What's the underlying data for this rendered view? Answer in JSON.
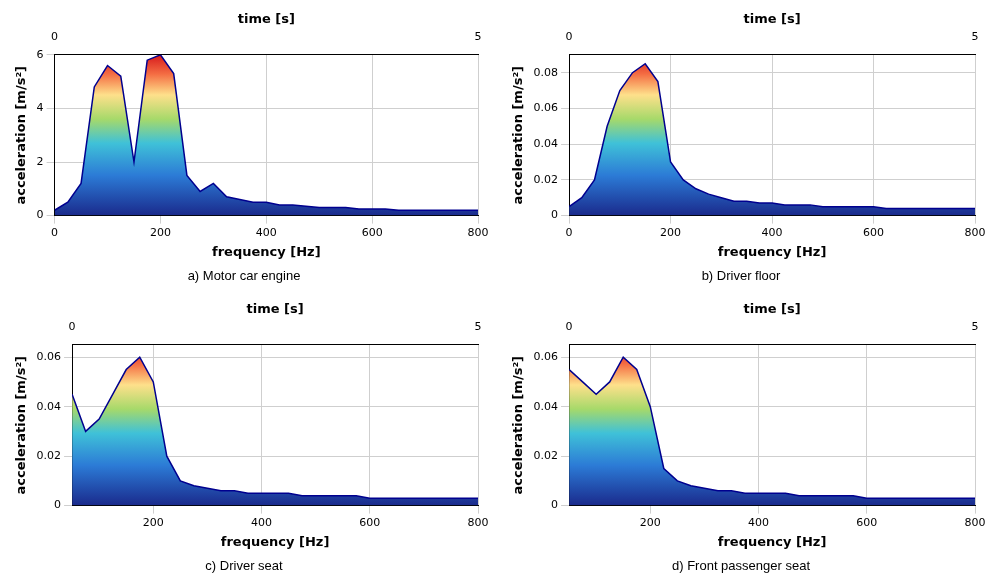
{
  "chart_data": [
    {
      "type": "line",
      "title": "a) Motor car engine",
      "x_label": "frequency [Hz]",
      "y_label": "acceleration [m/s²]",
      "color": "#00008f",
      "x": [
        0,
        25,
        50,
        75,
        100,
        125,
        150,
        175,
        200,
        225,
        250,
        275,
        300,
        325,
        350,
        375,
        400,
        425,
        450,
        475,
        500,
        525,
        550,
        575,
        600,
        625,
        650,
        675,
        700,
        725,
        750,
        775,
        800
      ],
      "values": [
        0.2,
        0.5,
        1.2,
        4.8,
        5.6,
        5.2,
        2.0,
        5.8,
        6.0,
        5.3,
        1.5,
        0.9,
        1.2,
        0.7,
        0.6,
        0.5,
        0.5,
        0.4,
        0.4,
        0.35,
        0.3,
        0.3,
        0.3,
        0.25,
        0.25,
        0.25,
        0.2,
        0.2,
        0.2,
        0.2,
        0.2,
        0.2,
        0.2
      ],
      "xlim": [
        0,
        800
      ],
      "xticks": [
        0,
        200,
        400,
        600,
        800
      ],
      "ylim": [
        0,
        6
      ],
      "yticks": [
        0,
        2,
        4,
        6
      ],
      "time_axis": {
        "label": "time [s]",
        "lim": [
          0,
          5
        ],
        "ticks": [
          0,
          5
        ]
      },
      "grid": true
    },
    {
      "type": "line",
      "title": "b) Driver floor",
      "x_label": "frequency [Hz]",
      "y_label": "acceleration [m/s²]",
      "color": "#00008f",
      "x": [
        0,
        25,
        50,
        75,
        100,
        125,
        150,
        175,
        200,
        225,
        250,
        275,
        300,
        325,
        350,
        375,
        400,
        425,
        450,
        475,
        500,
        525,
        550,
        575,
        600,
        625,
        650,
        675,
        700,
        725,
        750,
        775,
        800
      ],
      "values": [
        0.005,
        0.01,
        0.02,
        0.05,
        0.07,
        0.08,
        0.085,
        0.075,
        0.03,
        0.02,
        0.015,
        0.012,
        0.01,
        0.008,
        0.008,
        0.007,
        0.007,
        0.006,
        0.006,
        0.006,
        0.005,
        0.005,
        0.005,
        0.005,
        0.005,
        0.004,
        0.004,
        0.004,
        0.004,
        0.004,
        0.004,
        0.004,
        0.004
      ],
      "xlim": [
        0,
        800
      ],
      "xticks": [
        0,
        200,
        400,
        600,
        800
      ],
      "ylim": [
        0,
        0.09
      ],
      "yticks": [
        0,
        0.02,
        0.04,
        0.06,
        0.08
      ],
      "time_axis": {
        "label": "time [s]",
        "lim": [
          0,
          5
        ],
        "ticks": [
          0,
          5
        ]
      },
      "grid": true
    },
    {
      "type": "line",
      "title": "c) Driver seat",
      "x_label": "frequency [Hz]",
      "y_label": "acceleration [m/s²]",
      "color": "#00008f",
      "x": [
        50,
        75,
        100,
        125,
        150,
        175,
        200,
        225,
        250,
        275,
        300,
        325,
        350,
        375,
        400,
        425,
        450,
        475,
        500,
        525,
        550,
        575,
        600,
        625,
        650,
        675,
        700,
        725,
        750,
        775,
        800
      ],
      "values": [
        0.045,
        0.03,
        0.035,
        0.045,
        0.055,
        0.06,
        0.05,
        0.02,
        0.01,
        0.008,
        0.007,
        0.006,
        0.006,
        0.005,
        0.005,
        0.005,
        0.005,
        0.004,
        0.004,
        0.004,
        0.004,
        0.004,
        0.003,
        0.003,
        0.003,
        0.003,
        0.003,
        0.003,
        0.003,
        0.003,
        0.003
      ],
      "xlim": [
        50,
        800
      ],
      "xticks": [
        200,
        400,
        600,
        800
      ],
      "ylim": [
        0,
        0.065
      ],
      "yticks": [
        0,
        0.02,
        0.04,
        0.06
      ],
      "time_axis": {
        "label": "time [s]",
        "lim": [
          0,
          5
        ],
        "ticks": [
          0,
          5
        ]
      },
      "grid": true
    },
    {
      "type": "line",
      "title": "d) Front passenger seat",
      "x_label": "frequency [Hz]",
      "y_label": "acceleration [m/s²]",
      "color": "#00008f",
      "x": [
        50,
        75,
        100,
        125,
        150,
        175,
        200,
        225,
        250,
        275,
        300,
        325,
        350,
        375,
        400,
        425,
        450,
        475,
        500,
        525,
        550,
        575,
        600,
        625,
        650,
        675,
        700,
        725,
        750,
        775,
        800
      ],
      "values": [
        0.055,
        0.05,
        0.045,
        0.05,
        0.06,
        0.055,
        0.04,
        0.015,
        0.01,
        0.008,
        0.007,
        0.006,
        0.006,
        0.005,
        0.005,
        0.005,
        0.005,
        0.004,
        0.004,
        0.004,
        0.004,
        0.004,
        0.003,
        0.003,
        0.003,
        0.003,
        0.003,
        0.003,
        0.003,
        0.003,
        0.003
      ],
      "xlim": [
        50,
        800
      ],
      "xticks": [
        200,
        400,
        600,
        800
      ],
      "ylim": [
        0,
        0.065
      ],
      "yticks": [
        0,
        0.02,
        0.04,
        0.06
      ],
      "time_axis": {
        "label": "time [s]",
        "lim": [
          0,
          5
        ],
        "ticks": [
          0,
          5
        ]
      },
      "grid": true
    }
  ]
}
